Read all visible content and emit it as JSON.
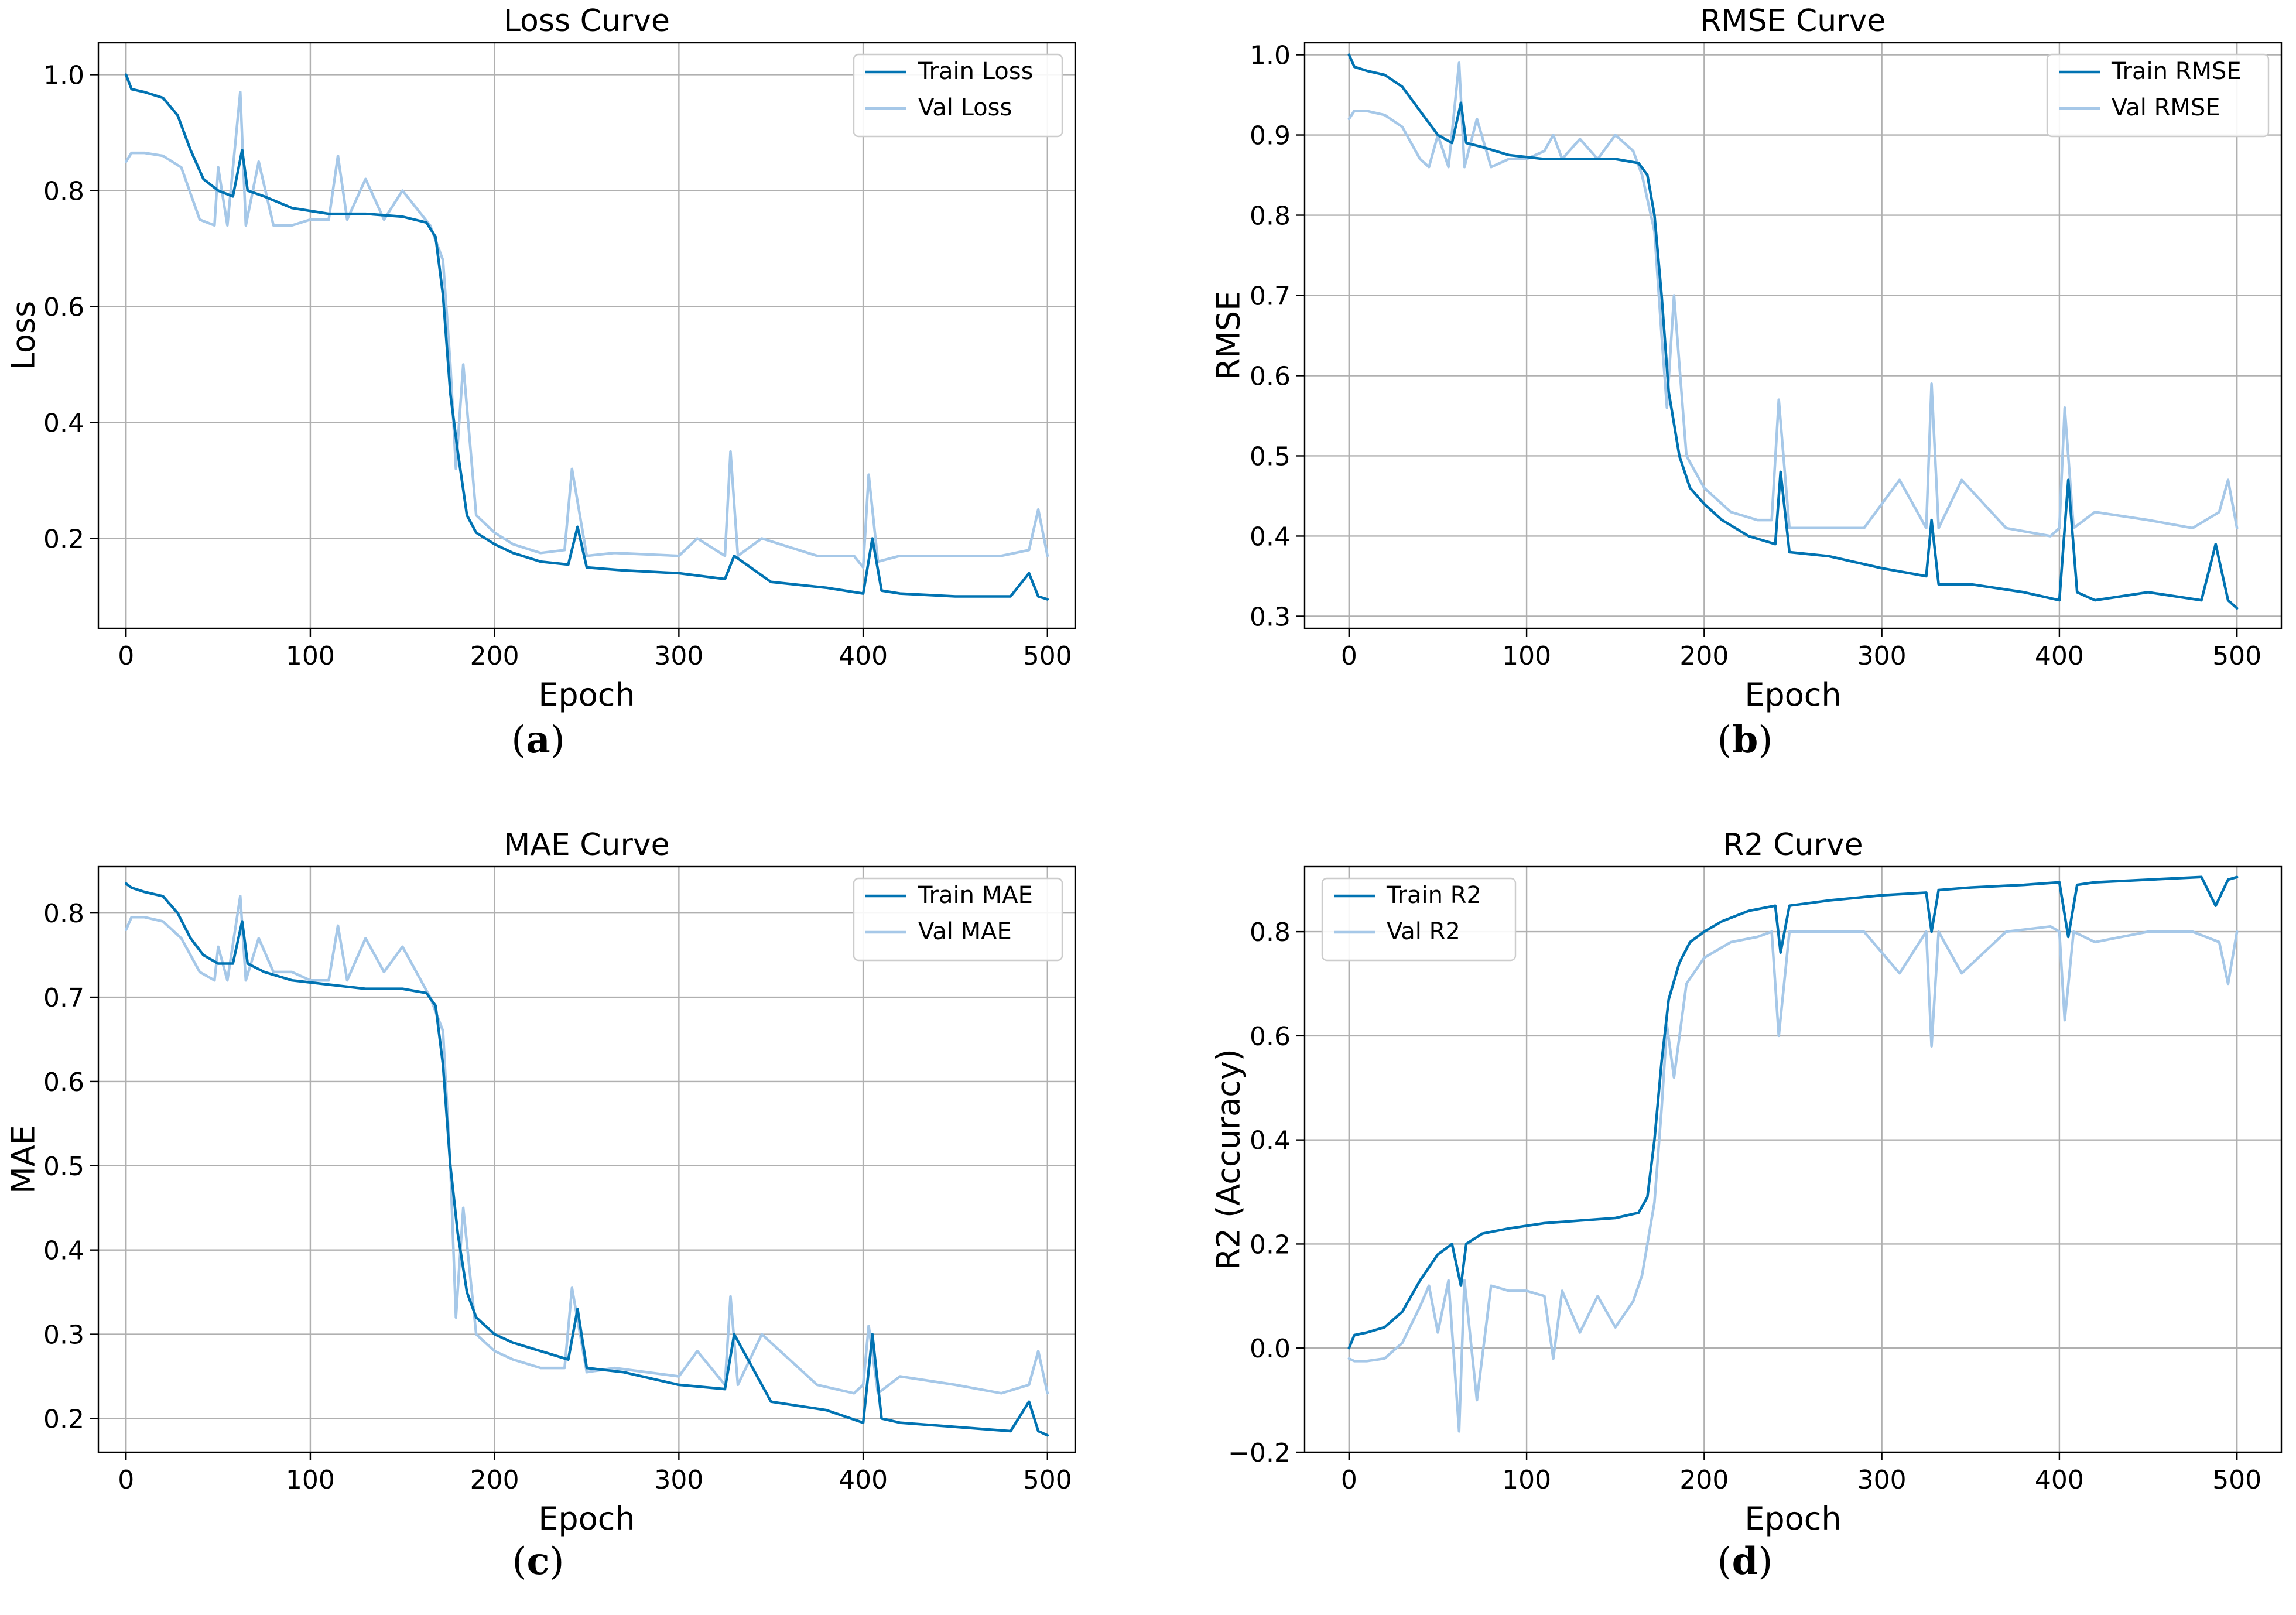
{
  "colors": {
    "train": "#0173b2",
    "val": "#a6c8e8"
  },
  "chart_data": [
    {
      "type": "line",
      "panel": "a",
      "title": "Loss Curve",
      "xlabel": "Epoch",
      "ylabel": "Loss",
      "xlim": [
        -15,
        515
      ],
      "ylim": [
        0.045,
        1.055
      ],
      "xticks": [
        0,
        100,
        200,
        300,
        400,
        500
      ],
      "yticks": [
        0.2,
        0.4,
        0.6,
        0.8,
        1.0
      ],
      "ytick_labels": [
        "0.2",
        "0.4",
        "0.6",
        "0.8",
        "1.0"
      ],
      "grid": true,
      "legend_loc": "top-right",
      "series": [
        {
          "name": "Train Loss",
          "kind": "train",
          "x": [
            0,
            3,
            10,
            20,
            28,
            35,
            42,
            50,
            58,
            63,
            66,
            75,
            90,
            110,
            130,
            150,
            163,
            168,
            172,
            176,
            180,
            185,
            190,
            200,
            210,
            225,
            240,
            245,
            250,
            270,
            300,
            325,
            330,
            350,
            380,
            400,
            405,
            410,
            420,
            450,
            480,
            490,
            495,
            500
          ],
          "y": [
            1.0,
            0.975,
            0.97,
            0.96,
            0.93,
            0.87,
            0.82,
            0.8,
            0.79,
            0.87,
            0.8,
            0.79,
            0.77,
            0.76,
            0.76,
            0.755,
            0.745,
            0.72,
            0.62,
            0.45,
            0.35,
            0.24,
            0.21,
            0.19,
            0.175,
            0.16,
            0.155,
            0.22,
            0.15,
            0.145,
            0.14,
            0.13,
            0.17,
            0.125,
            0.115,
            0.105,
            0.2,
            0.11,
            0.105,
            0.1,
            0.1,
            0.14,
            0.1,
            0.095
          ]
        },
        {
          "name": "Val Loss",
          "kind": "val",
          "x": [
            0,
            3,
            10,
            20,
            30,
            40,
            48,
            50,
            55,
            62,
            65,
            72,
            80,
            90,
            100,
            110,
            115,
            120,
            130,
            140,
            150,
            160,
            165,
            172,
            176,
            179,
            183,
            190,
            200,
            210,
            225,
            238,
            242,
            250,
            265,
            300,
            310,
            325,
            328,
            332,
            345,
            375,
            395,
            400,
            403,
            408,
            420,
            450,
            475,
            490,
            495,
            500
          ],
          "y": [
            0.85,
            0.865,
            0.865,
            0.86,
            0.84,
            0.75,
            0.74,
            0.84,
            0.74,
            0.97,
            0.74,
            0.85,
            0.74,
            0.74,
            0.75,
            0.75,
            0.86,
            0.75,
            0.82,
            0.75,
            0.8,
            0.76,
            0.74,
            0.68,
            0.5,
            0.32,
            0.5,
            0.24,
            0.21,
            0.19,
            0.175,
            0.18,
            0.32,
            0.17,
            0.175,
            0.17,
            0.2,
            0.17,
            0.35,
            0.17,
            0.2,
            0.17,
            0.17,
            0.15,
            0.31,
            0.16,
            0.17,
            0.17,
            0.17,
            0.18,
            0.25,
            0.17
          ]
        }
      ]
    },
    {
      "type": "line",
      "panel": "b",
      "title": "RMSE Curve",
      "xlabel": "Epoch",
      "ylabel": "RMSE",
      "xlim": [
        -25,
        525
      ],
      "ylim": [
        0.285,
        1.015
      ],
      "xticks": [
        0,
        100,
        200,
        300,
        400,
        500
      ],
      "yticks": [
        0.3,
        0.4,
        0.5,
        0.6,
        0.7,
        0.8,
        0.9,
        1.0
      ],
      "ytick_labels": [
        "0.3",
        "0.4",
        "0.5",
        "0.6",
        "0.7",
        "0.8",
        "0.9",
        "1.0"
      ],
      "grid": true,
      "legend_loc": "top-right",
      "series": [
        {
          "name": "Train RMSE",
          "kind": "train",
          "x": [
            0,
            3,
            10,
            20,
            30,
            40,
            50,
            58,
            63,
            66,
            75,
            90,
            110,
            130,
            150,
            163,
            168,
            172,
            176,
            180,
            186,
            192,
            200,
            210,
            225,
            240,
            243,
            248,
            270,
            300,
            325,
            328,
            332,
            350,
            380,
            400,
            405,
            410,
            420,
            450,
            480,
            488,
            495,
            500
          ],
          "y": [
            1.0,
            0.985,
            0.98,
            0.975,
            0.96,
            0.93,
            0.9,
            0.89,
            0.94,
            0.89,
            0.885,
            0.875,
            0.87,
            0.87,
            0.87,
            0.865,
            0.85,
            0.8,
            0.7,
            0.58,
            0.5,
            0.46,
            0.44,
            0.42,
            0.4,
            0.39,
            0.48,
            0.38,
            0.375,
            0.36,
            0.35,
            0.42,
            0.34,
            0.34,
            0.33,
            0.32,
            0.47,
            0.33,
            0.32,
            0.33,
            0.32,
            0.39,
            0.32,
            0.31
          ]
        },
        {
          "name": "Val RMSE",
          "kind": "val",
          "x": [
            0,
            3,
            10,
            20,
            30,
            40,
            45,
            50,
            56,
            62,
            65,
            72,
            80,
            90,
            100,
            110,
            115,
            120,
            130,
            140,
            150,
            160,
            165,
            172,
            176,
            179,
            183,
            190,
            200,
            215,
            230,
            238,
            242,
            248,
            265,
            290,
            310,
            325,
            328,
            332,
            345,
            370,
            395,
            400,
            403,
            408,
            420,
            450,
            475,
            490,
            495,
            500
          ],
          "y": [
            0.92,
            0.93,
            0.93,
            0.925,
            0.91,
            0.87,
            0.86,
            0.9,
            0.86,
            0.99,
            0.86,
            0.92,
            0.86,
            0.87,
            0.87,
            0.88,
            0.9,
            0.87,
            0.895,
            0.87,
            0.9,
            0.88,
            0.85,
            0.78,
            0.65,
            0.56,
            0.7,
            0.5,
            0.46,
            0.43,
            0.42,
            0.42,
            0.57,
            0.41,
            0.41,
            0.41,
            0.47,
            0.41,
            0.59,
            0.41,
            0.47,
            0.41,
            0.4,
            0.41,
            0.56,
            0.41,
            0.43,
            0.42,
            0.41,
            0.43,
            0.47,
            0.41
          ]
        }
      ]
    },
    {
      "type": "line",
      "panel": "c",
      "title": "MAE Curve",
      "xlabel": "Epoch",
      "ylabel": "MAE",
      "xlim": [
        -15,
        515
      ],
      "ylim": [
        0.16,
        0.855
      ],
      "xticks": [
        0,
        100,
        200,
        300,
        400,
        500
      ],
      "yticks": [
        0.2,
        0.3,
        0.4,
        0.5,
        0.6,
        0.7,
        0.8
      ],
      "ytick_labels": [
        "0.2",
        "0.3",
        "0.4",
        "0.5",
        "0.6",
        "0.7",
        "0.8"
      ],
      "grid": true,
      "legend_loc": "top-right",
      "series": [
        {
          "name": "Train MAE",
          "kind": "train",
          "x": [
            0,
            3,
            10,
            20,
            28,
            35,
            42,
            50,
            58,
            63,
            66,
            75,
            90,
            110,
            130,
            150,
            163,
            168,
            172,
            176,
            180,
            185,
            190,
            200,
            210,
            225,
            240,
            245,
            250,
            270,
            300,
            325,
            330,
            350,
            380,
            400,
            405,
            410,
            420,
            450,
            480,
            490,
            495,
            500
          ],
          "y": [
            0.835,
            0.83,
            0.825,
            0.82,
            0.8,
            0.77,
            0.75,
            0.74,
            0.74,
            0.79,
            0.74,
            0.73,
            0.72,
            0.715,
            0.71,
            0.71,
            0.705,
            0.69,
            0.62,
            0.5,
            0.42,
            0.35,
            0.32,
            0.3,
            0.29,
            0.28,
            0.27,
            0.33,
            0.26,
            0.255,
            0.24,
            0.235,
            0.3,
            0.22,
            0.21,
            0.195,
            0.3,
            0.2,
            0.195,
            0.19,
            0.185,
            0.22,
            0.185,
            0.18
          ]
        },
        {
          "name": "Val MAE",
          "kind": "val",
          "x": [
            0,
            3,
            10,
            20,
            30,
            40,
            48,
            50,
            55,
            62,
            65,
            72,
            80,
            90,
            100,
            110,
            115,
            120,
            130,
            140,
            150,
            160,
            165,
            172,
            176,
            179,
            183,
            190,
            200,
            210,
            225,
            238,
            242,
            250,
            265,
            300,
            310,
            325,
            328,
            332,
            345,
            375,
            395,
            400,
            403,
            408,
            420,
            450,
            475,
            490,
            495,
            500
          ],
          "y": [
            0.78,
            0.795,
            0.795,
            0.79,
            0.77,
            0.73,
            0.72,
            0.76,
            0.72,
            0.82,
            0.72,
            0.77,
            0.73,
            0.73,
            0.72,
            0.72,
            0.785,
            0.72,
            0.77,
            0.73,
            0.76,
            0.72,
            0.7,
            0.66,
            0.5,
            0.32,
            0.45,
            0.3,
            0.28,
            0.27,
            0.26,
            0.26,
            0.355,
            0.255,
            0.26,
            0.25,
            0.28,
            0.24,
            0.345,
            0.24,
            0.3,
            0.24,
            0.23,
            0.24,
            0.31,
            0.23,
            0.25,
            0.24,
            0.23,
            0.24,
            0.28,
            0.23
          ]
        }
      ]
    },
    {
      "type": "line",
      "panel": "d",
      "title": "R2 Curve",
      "xlabel": "Epoch",
      "ylabel": "R2 (Accuracy)",
      "xlim": [
        -25,
        525
      ],
      "ylim": [
        -0.2,
        0.925
      ],
      "xticks": [
        0,
        100,
        200,
        300,
        400,
        500
      ],
      "yticks": [
        -0.2,
        0.0,
        0.2,
        0.4,
        0.6,
        0.8
      ],
      "ytick_labels": [
        "−0.2",
        "0.0",
        "0.2",
        "0.4",
        "0.6",
        "0.8"
      ],
      "grid": true,
      "legend_loc": "top-left",
      "series": [
        {
          "name": "Train R2",
          "kind": "train",
          "x": [
            0,
            3,
            10,
            20,
            30,
            40,
            50,
            58,
            63,
            66,
            75,
            90,
            110,
            130,
            150,
            163,
            168,
            172,
            176,
            180,
            186,
            192,
            200,
            210,
            225,
            240,
            243,
            248,
            270,
            300,
            325,
            328,
            332,
            350,
            380,
            400,
            405,
            410,
            420,
            450,
            480,
            488,
            495,
            500
          ],
          "y": [
            0.0,
            0.025,
            0.03,
            0.04,
            0.07,
            0.13,
            0.18,
            0.2,
            0.12,
            0.2,
            0.22,
            0.23,
            0.24,
            0.245,
            0.25,
            0.26,
            0.29,
            0.4,
            0.55,
            0.67,
            0.74,
            0.78,
            0.8,
            0.82,
            0.84,
            0.85,
            0.76,
            0.85,
            0.86,
            0.87,
            0.875,
            0.8,
            0.88,
            0.885,
            0.89,
            0.895,
            0.79,
            0.89,
            0.895,
            0.9,
            0.905,
            0.85,
            0.9,
            0.905
          ]
        },
        {
          "name": "Val R2",
          "kind": "val",
          "x": [
            0,
            3,
            10,
            20,
            30,
            40,
            45,
            50,
            56,
            62,
            65,
            72,
            80,
            90,
            100,
            110,
            115,
            120,
            130,
            140,
            150,
            160,
            165,
            172,
            176,
            179,
            183,
            190,
            200,
            215,
            230,
            238,
            242,
            248,
            265,
            290,
            310,
            325,
            328,
            332,
            345,
            370,
            395,
            400,
            403,
            408,
            420,
            450,
            475,
            490,
            495,
            500
          ],
          "y": [
            -0.02,
            -0.025,
            -0.025,
            -0.02,
            0.01,
            0.08,
            0.12,
            0.03,
            0.13,
            -0.16,
            0.13,
            -0.1,
            0.12,
            0.11,
            0.11,
            0.1,
            -0.02,
            0.11,
            0.03,
            0.1,
            0.04,
            0.09,
            0.14,
            0.28,
            0.46,
            0.62,
            0.52,
            0.7,
            0.75,
            0.78,
            0.79,
            0.8,
            0.6,
            0.8,
            0.8,
            0.8,
            0.72,
            0.8,
            0.58,
            0.8,
            0.72,
            0.8,
            0.81,
            0.8,
            0.63,
            0.8,
            0.78,
            0.8,
            0.8,
            0.78,
            0.7,
            0.8
          ]
        }
      ]
    }
  ],
  "captions": [
    {
      "open": "(",
      "letter": "a",
      "close": ")"
    },
    {
      "open": "(",
      "letter": "b",
      "close": ")"
    },
    {
      "open": "(",
      "letter": "c",
      "close": ")"
    },
    {
      "open": "(",
      "letter": "d",
      "close": ")"
    }
  ]
}
